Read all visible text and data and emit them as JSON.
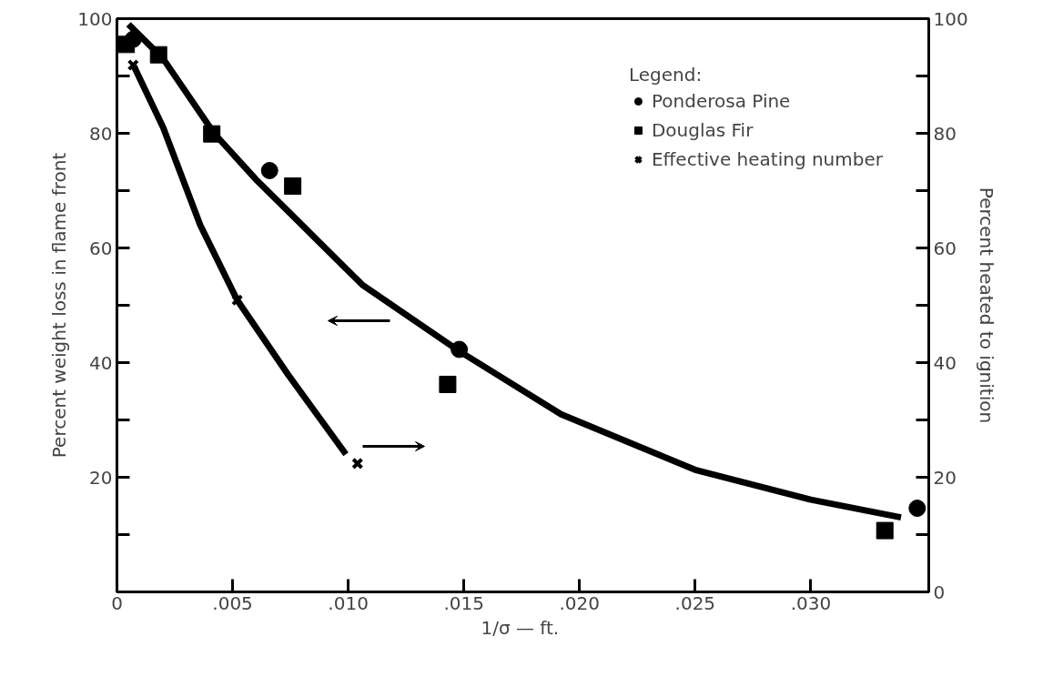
{
  "chart_data": {
    "type": "scatter",
    "xlabel": "1/σ  — ft.",
    "ylabel": "Percent weight loss in flame front",
    "y2label": "Percent heated to ignition",
    "legend_title": "Legend:",
    "xlim": [
      0,
      0.0351
    ],
    "xticks": [
      0,
      {
        "value": 0.005,
        "label": ".005"
      },
      {
        "value": 0.01,
        "label": ".010"
      },
      {
        "value": 0.015,
        "label": ".015"
      },
      {
        "value": 0.02,
        "label": ".020"
      },
      {
        "value": 0.025,
        "label": ".025"
      },
      {
        "value": 0.03,
        "label": ".030"
      }
    ],
    "ylim": [
      0,
      100
    ],
    "yticks": [
      {
        "value": 10,
        "label": null
      },
      20,
      {
        "value": 30,
        "label": null
      },
      40,
      {
        "value": 50,
        "label": null
      },
      60,
      {
        "value": 70,
        "label": null
      },
      80,
      {
        "value": 90,
        "label": null
      },
      100
    ],
    "y2lim": [
      0,
      100
    ],
    "y2ticks": [
      0,
      {
        "value": 10,
        "label": null
      },
      20,
      {
        "value": 30,
        "label": null
      },
      40,
      {
        "value": 50,
        "label": null
      },
      60,
      {
        "value": 70,
        "label": null
      },
      80,
      {
        "value": 90,
        "label": null
      },
      100
    ],
    "grid": false,
    "legend": "top right",
    "line_style": "solid",
    "series": [
      {
        "name": "Ponderosa Pine",
        "marker": "circle",
        "color": "#000000",
        "x": [
          0.0007,
          0.0066,
          0.0148,
          0.0346
        ],
        "values": [
          96.4,
          73.5,
          42.3,
          14.6
        ]
      },
      {
        "name": "Douglas Fir",
        "marker": "square",
        "color": "#000000",
        "x": [
          0.0004,
          0.0018,
          0.0041,
          0.0076,
          0.0143,
          0.0332
        ],
        "values": [
          95.5,
          93.7,
          79.9,
          70.8,
          36.2,
          10.7
        ]
      },
      {
        "name": "Effective heating number",
        "marker": "cross",
        "axis": "y2",
        "color": "#000000",
        "x": [
          0.0007,
          0.0052,
          0.0104
        ],
        "values": [
          91.9,
          50.9,
          22.4
        ]
      },
      {
        "type": "line",
        "color": "#000000",
        "x": [
          0.0005,
          0.002,
          0.0042,
          0.006,
          0.008,
          0.0106,
          0.0148,
          0.0192,
          0.025,
          0.03,
          0.0339
        ],
        "values": [
          99,
          93,
          80,
          72,
          64,
          53.6,
          42,
          31,
          21.3,
          16.1,
          13
        ]
      },
      {
        "type": "line",
        "axis": "y2",
        "color": "#000000",
        "x": [
          0.0007,
          0.002,
          0.0036,
          0.0052,
          0.0074,
          0.0099
        ],
        "values": [
          92,
          81,
          64,
          50.9,
          37.9,
          24
        ]
      }
    ]
  }
}
